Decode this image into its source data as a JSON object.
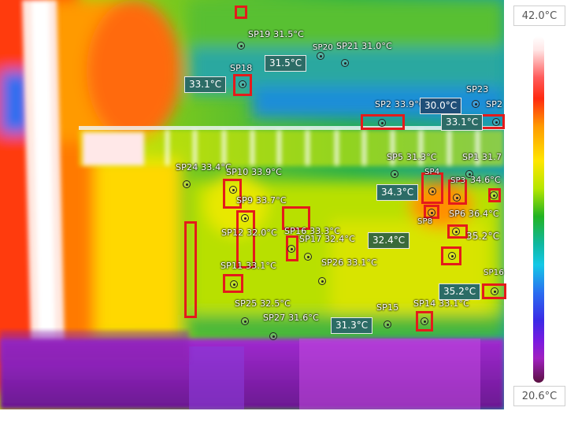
{
  "scale": {
    "max_label": "42.0°C",
    "min_label": "20.6°C",
    "palette": [
      "#ffffff",
      "#ff2a10",
      "#ffe600",
      "#22b322",
      "#14c8e6",
      "#3a2ae6",
      "#a020c0",
      "#5a1040"
    ]
  },
  "spots": [
    {
      "label": "SP19 31.5°C"
    },
    {
      "label": "SP20"
    },
    {
      "label": "SP21 31.0°C"
    },
    {
      "label": "SP18"
    },
    {
      "label": "SP23"
    },
    {
      "label": "SP2 33.9°C"
    },
    {
      "label": "SP2"
    },
    {
      "label": "SP5 31.3°C"
    },
    {
      "label": "SP1 31.7"
    },
    {
      "label": "SP24 33.4°C"
    },
    {
      "label": "SP10 33.9°C"
    },
    {
      "label": "SP9 33.7°C"
    },
    {
      "label": "SP4"
    },
    {
      "label": "SP3"
    },
    {
      "label": "34.6°C"
    },
    {
      "label": "SP8"
    },
    {
      "label": "SP6 36.4°C"
    },
    {
      "label": "SP12 32.0°C"
    },
    {
      "label": "SP16 33.3°C"
    },
    {
      "label": "SP17 32.4°C"
    },
    {
      "label": "35.2°C"
    },
    {
      "label": "SP11 33.1°C"
    },
    {
      "label": "SP26 33.1°C"
    },
    {
      "label": "SP16"
    },
    {
      "label": "SP25 32.5°C"
    },
    {
      "label": "SP27 31.6°C"
    },
    {
      "label": "SP15"
    },
    {
      "label": "SP14 33.1°C"
    }
  ],
  "temp_boxes": [
    {
      "text": "31.5°C"
    },
    {
      "text": "33.1°C"
    },
    {
      "text": "30.0°C"
    },
    {
      "text": "33.1°C"
    },
    {
      "text": "34.3°C"
    },
    {
      "text": "32.4°C"
    },
    {
      "text": "35.2°C"
    },
    {
      "text": "31.3°C"
    }
  ]
}
